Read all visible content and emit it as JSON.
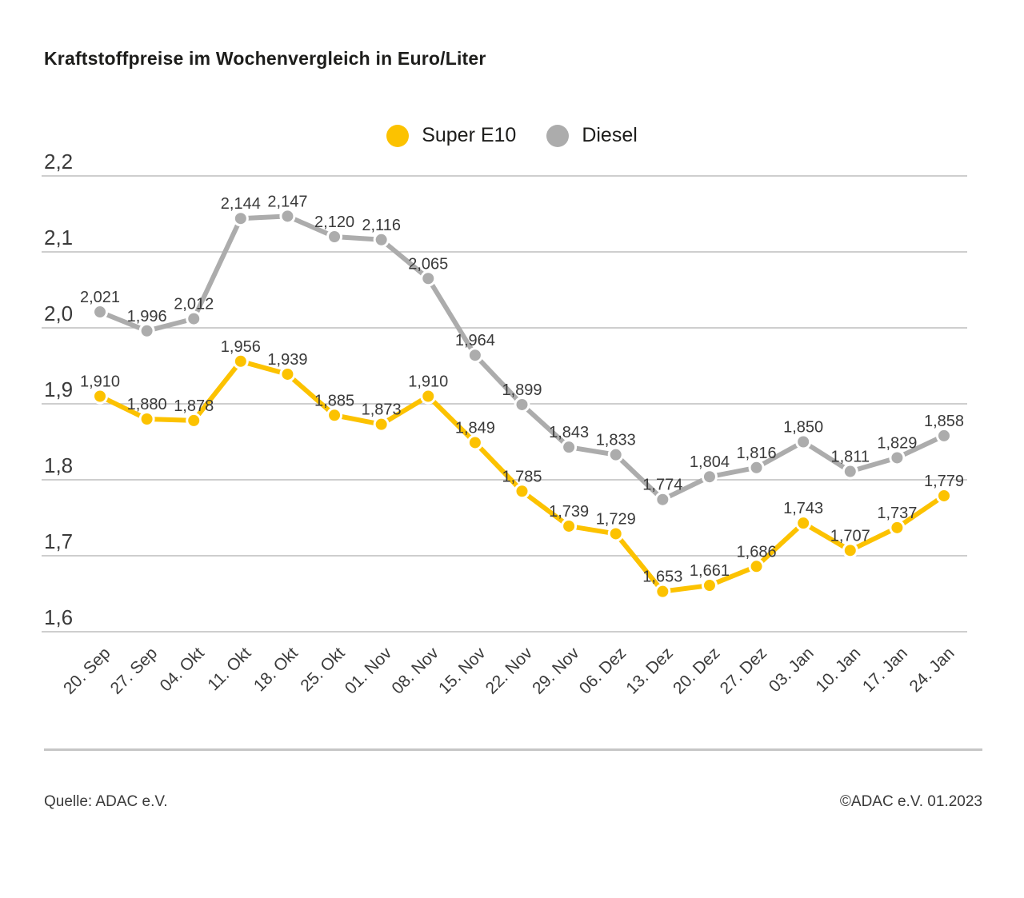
{
  "header": {
    "title": "Kraftstoffpreise im Wochenvergleich in Euro/Liter"
  },
  "legend": {
    "items": [
      {
        "label": "Super E10",
        "color": "#fcc200"
      },
      {
        "label": "Diesel",
        "color": "#acacac"
      }
    ]
  },
  "chart_data": {
    "type": "line",
    "title": "Kraftstoffpreise im Wochenvergleich in Euro/Liter",
    "unit": "Euro/Liter",
    "categories": [
      "20. Sep",
      "27. Sep",
      "04. Okt",
      "11. Okt",
      "18. Okt",
      "25. Okt",
      "01. Nov",
      "08. Nov",
      "15. Nov",
      "22. Nov",
      "29. Nov",
      "06. Dez",
      "13. Dez",
      "20. Dez",
      "27. Dez",
      "03. Jan",
      "10. Jan",
      "17. Jan",
      "24. Jan"
    ],
    "series": [
      {
        "name": "Super E10",
        "color": "#fcc200",
        "values": [
          1.91,
          1.88,
          1.878,
          1.956,
          1.939,
          1.885,
          1.873,
          1.91,
          1.849,
          1.785,
          1.739,
          1.729,
          1.653,
          1.661,
          1.686,
          1.743,
          1.707,
          1.737,
          1.779
        ]
      },
      {
        "name": "Diesel",
        "color": "#acacac",
        "values": [
          2.021,
          1.996,
          2.012,
          2.144,
          2.147,
          2.12,
          2.116,
          2.065,
          1.964,
          1.899,
          1.843,
          1.833,
          1.774,
          1.804,
          1.816,
          1.85,
          1.811,
          1.829,
          1.858
        ]
      }
    ],
    "ylim": [
      1.6,
      2.2
    ],
    "ytick_step": 0.1,
    "ytick_labels": [
      "2,2",
      "2,1",
      "2,0",
      "1,9",
      "1,8",
      "1,7",
      "1,6"
    ],
    "decimal_separator": ",",
    "grid": true,
    "legend_position": "top-center",
    "value_labels": true,
    "grid_color": "#bdbdbd",
    "label_color": "#3a3a3a"
  },
  "footer": {
    "source": "Quelle: ADAC e.V.",
    "copyright": "©ADAC e.V. 01.2023"
  }
}
